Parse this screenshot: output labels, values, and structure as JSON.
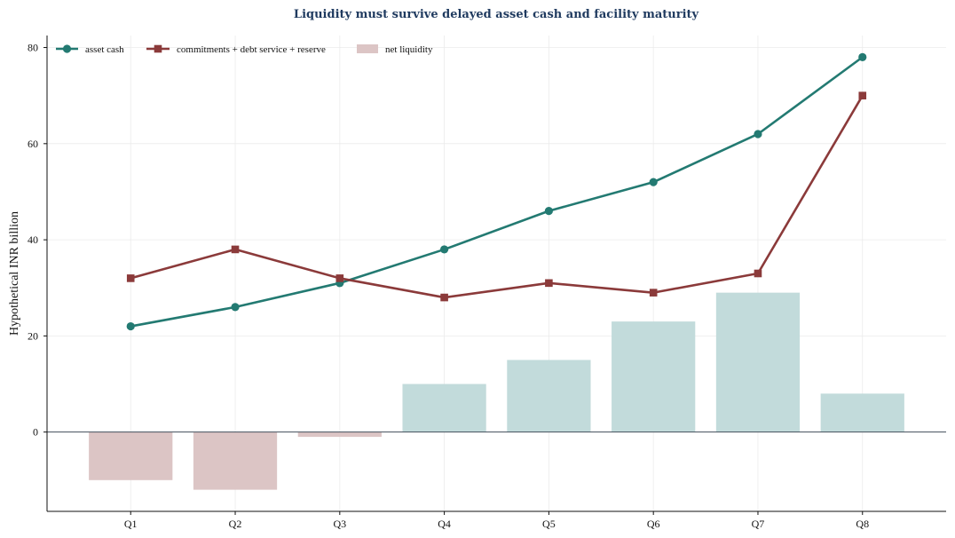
{
  "chart_data": {
    "type": "bar+line",
    "title": "Liquidity must survive delayed asset cash and facility maturity",
    "xlabel": "",
    "ylabel": "Hypothetical INR billion",
    "categories": [
      "Q1",
      "Q2",
      "Q3",
      "Q4",
      "Q5",
      "Q6",
      "Q7",
      "Q8"
    ],
    "ylim": [
      -16.5,
      82.5
    ],
    "yticks": [
      0,
      20,
      40,
      60,
      80
    ],
    "grid": true,
    "legend_position": "top-left",
    "series": [
      {
        "name": "asset cash",
        "type": "line",
        "marker": "circle",
        "color": "#237a72",
        "values": [
          22,
          26,
          31,
          38,
          46,
          52,
          62,
          78
        ]
      },
      {
        "name": "commitments + debt service + reserve",
        "type": "line",
        "marker": "square",
        "color": "#8b3a3a",
        "values": [
          32,
          38,
          32,
          28,
          31,
          29,
          33,
          70
        ]
      },
      {
        "name": "net liquidity",
        "type": "bar",
        "color_positive": "#c2dbdb",
        "color_negative": "#dcc5c5",
        "values": [
          -10,
          -12,
          -1,
          10,
          15,
          23,
          29,
          8
        ]
      }
    ]
  }
}
